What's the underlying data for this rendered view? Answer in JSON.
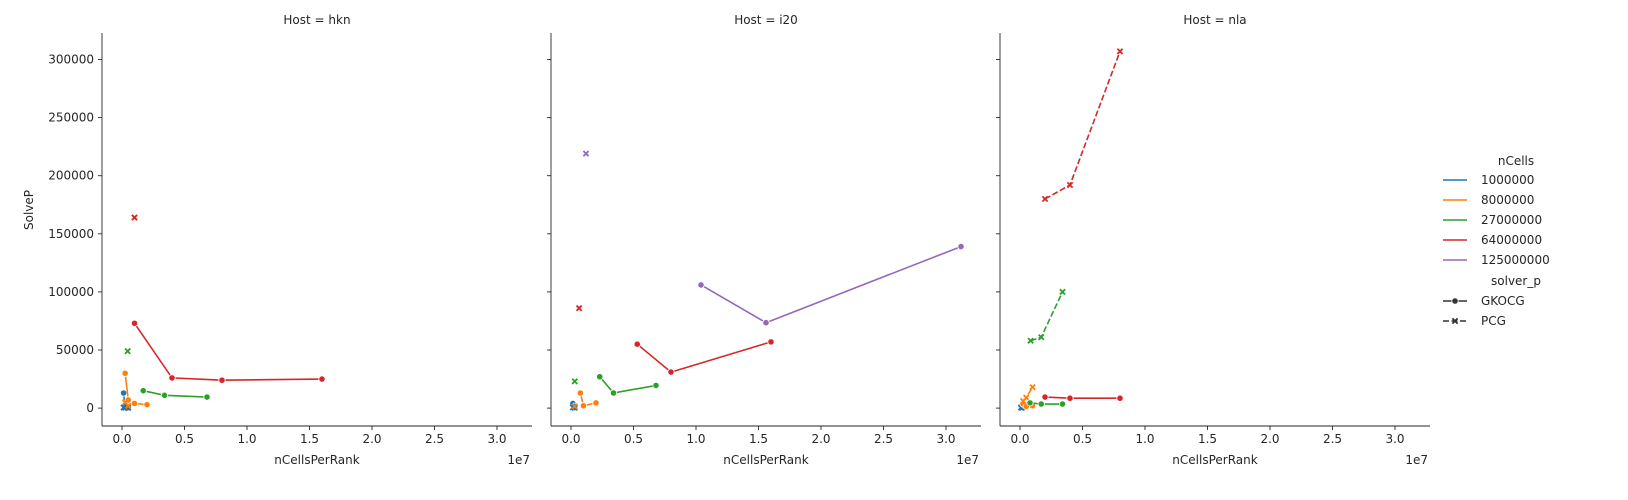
{
  "chart_data": {
    "type": "line",
    "facet_label": "Host",
    "xlabel": "nCellsPerRank",
    "ylabel": "SolveP",
    "x_offset_text": "1e7",
    "xlim": [
      -1600000,
      32800000
    ],
    "ylim": [
      -15400,
      322800
    ],
    "x_ticks": [
      0,
      5000000,
      10000000,
      15000000,
      20000000,
      25000000,
      30000000
    ],
    "x_tick_labels": [
      "0.0",
      "0.5",
      "1.0",
      "1.5",
      "2.0",
      "2.5",
      "3.0"
    ],
    "y_ticks": [
      0,
      50000,
      100000,
      150000,
      200000,
      250000,
      300000
    ],
    "y_tick_labels": [
      "0",
      "50000",
      "100000",
      "150000",
      "200000",
      "250000",
      "300000"
    ],
    "grid": false,
    "legend_placement": "right",
    "legend": {
      "hue_title": "nCells",
      "hue_entries": [
        {
          "label": "1000000",
          "color": "#1f77b4"
        },
        {
          "label": "8000000",
          "color": "#ff7f0e"
        },
        {
          "label": "27000000",
          "color": "#2ca02c"
        },
        {
          "label": "64000000",
          "color": "#d62728"
        },
        {
          "label": "125000000",
          "color": "#9467bd"
        }
      ],
      "style_title": "solver_p",
      "style_entries": [
        {
          "label": "GKOCG",
          "marker": "circle",
          "dash": "solid"
        },
        {
          "label": "PCG",
          "marker": "x",
          "dash": "dashed"
        }
      ]
    },
    "panels": [
      {
        "title": "Host = hkn",
        "series": [
          {
            "nCells": "1000000",
            "solver": "GKOCG",
            "color": "#1f77b4",
            "points": [
              [
                125000,
                13000
              ],
              [
                250000,
                1500
              ],
              [
                500000,
                500
              ]
            ]
          },
          {
            "nCells": "1000000",
            "solver": "PCG",
            "color": "#1f77b4",
            "points": [
              [
                125000,
                500
              ],
              [
                250000,
                300
              ],
              [
                500000,
                200
              ]
            ]
          },
          {
            "nCells": "8000000",
            "solver": "GKOCG",
            "color": "#ff7f0e",
            "points": [
              [
                250000,
                30000
              ],
              [
                500000,
                7000
              ],
              [
                1000000,
                4000
              ],
              [
                2000000,
                3000
              ]
            ]
          },
          {
            "nCells": "8000000",
            "solver": "PCG",
            "color": "#ff7f0e",
            "points": [
              [
                250000,
                5000
              ],
              [
                500000,
                2000
              ]
            ]
          },
          {
            "nCells": "27000000",
            "solver": "GKOCG",
            "color": "#2ca02c",
            "points": [
              [
                1700000,
                15000
              ],
              [
                3400000,
                11000
              ],
              [
                6800000,
                9500
              ]
            ]
          },
          {
            "nCells": "27000000",
            "solver": "PCG",
            "color": "#2ca02c",
            "points": [
              [
                450000,
                49000
              ]
            ]
          },
          {
            "nCells": "64000000",
            "solver": "GKOCG",
            "color": "#d62728",
            "points": [
              [
                1000000,
                73000
              ],
              [
                4000000,
                26000
              ],
              [
                8000000,
                24000
              ],
              [
                16000000,
                25000
              ]
            ]
          },
          {
            "nCells": "64000000",
            "solver": "PCG",
            "color": "#d62728",
            "points": [
              [
                1000000,
                164000
              ]
            ]
          }
        ]
      },
      {
        "title": "Host = i20",
        "series": [
          {
            "nCells": "1000000",
            "solver": "GKOCG",
            "color": "#1f77b4",
            "points": [
              [
                150000,
                4000
              ],
              [
                300000,
                1500
              ]
            ]
          },
          {
            "nCells": "1000000",
            "solver": "PCG",
            "color": "#1f77b4",
            "points": [
              [
                150000,
                500
              ],
              [
                300000,
                300
              ]
            ]
          },
          {
            "nCells": "8000000",
            "solver": "GKOCG",
            "color": "#ff7f0e",
            "points": [
              [
                750000,
                13000
              ],
              [
                1000000,
                2000
              ],
              [
                2000000,
                4500
              ]
            ]
          },
          {
            "nCells": "8000000",
            "solver": "PCG",
            "color": "#ff7f0e",
            "points": [
              [
                300000,
                1500
              ]
            ]
          },
          {
            "nCells": "27000000",
            "solver": "GKOCG",
            "color": "#2ca02c",
            "points": [
              [
                2300000,
                27000
              ],
              [
                3400000,
                13000
              ],
              [
                6800000,
                19500
              ]
            ]
          },
          {
            "nCells": "27000000",
            "solver": "PCG",
            "color": "#2ca02c",
            "points": [
              [
                300000,
                23000
              ]
            ]
          },
          {
            "nCells": "64000000",
            "solver": "GKOCG",
            "color": "#d62728",
            "points": [
              [
                5300000,
                55000
              ],
              [
                8000000,
                31000
              ],
              [
                16000000,
                57000
              ]
            ]
          },
          {
            "nCells": "64000000",
            "solver": "PCG",
            "color": "#d62728",
            "points": [
              [
                650000,
                86000
              ]
            ]
          },
          {
            "nCells": "125000000",
            "solver": "GKOCG",
            "color": "#9467bd",
            "points": [
              [
                10400000,
                106000
              ],
              [
                15600000,
                73500
              ],
              [
                31200000,
                139000
              ]
            ]
          },
          {
            "nCells": "125000000",
            "solver": "PCG",
            "color": "#9467bd",
            "points": [
              [
                1200000,
                219000
              ]
            ]
          }
        ]
      },
      {
        "title": "Host = nla",
        "series": [
          {
            "nCells": "1000000",
            "solver": "GKOCG",
            "color": "#1f77b4",
            "points": [
              [
                80000,
                1500
              ],
              [
                160000,
                800
              ]
            ]
          },
          {
            "nCells": "1000000",
            "solver": "PCG",
            "color": "#1f77b4",
            "points": [
              [
                80000,
                400
              ],
              [
                160000,
                300
              ]
            ]
          },
          {
            "nCells": "8000000",
            "solver": "GKOCG",
            "color": "#ff7f0e",
            "points": [
              [
                250000,
                3500
              ],
              [
                500000,
                1500
              ],
              [
                1000000,
                2000
              ]
            ]
          },
          {
            "nCells": "8000000",
            "solver": "PCG",
            "color": "#ff7f0e",
            "points": [
              [
                250000,
                6000
              ],
              [
                500000,
                9000
              ],
              [
                1000000,
                18000
              ]
            ]
          },
          {
            "nCells": "27000000",
            "solver": "GKOCG",
            "color": "#2ca02c",
            "points": [
              [
                800000,
                4500
              ],
              [
                1700000,
                3500
              ],
              [
                3400000,
                3500
              ]
            ]
          },
          {
            "nCells": "27000000",
            "solver": "PCG",
            "color": "#2ca02c",
            "points": [
              [
                850000,
                58000
              ],
              [
                1700000,
                61000
              ],
              [
                3400000,
                100000
              ]
            ]
          },
          {
            "nCells": "64000000",
            "solver": "GKOCG",
            "color": "#d62728",
            "points": [
              [
                2000000,
                9500
              ],
              [
                4000000,
                8500
              ],
              [
                8000000,
                8500
              ]
            ]
          },
          {
            "nCells": "64000000",
            "solver": "PCG",
            "color": "#d62728",
            "points": [
              [
                2000000,
                180000
              ],
              [
                4000000,
                192000
              ],
              [
                8000000,
                307000
              ]
            ]
          }
        ]
      }
    ]
  }
}
